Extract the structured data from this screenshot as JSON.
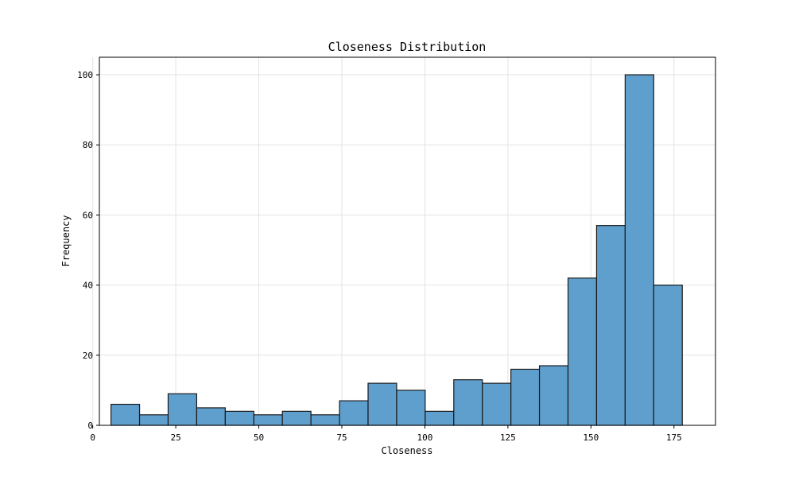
{
  "chart_data": {
    "type": "bar",
    "title": "Closeness Distribution",
    "xlabel": "Closeness",
    "ylabel": "Frequency",
    "xlim": [
      2,
      187.5
    ],
    "ylim": [
      0,
      105
    ],
    "x_ticks": [
      0,
      25,
      50,
      75,
      100,
      125,
      150,
      175
    ],
    "y_ticks": [
      0,
      20,
      40,
      60,
      80,
      100
    ],
    "grid": true,
    "bar_color": "#5f9fcd",
    "edge_color": "#1a1a1a",
    "bins": [
      {
        "x0": 5.5,
        "x1": 14.1,
        "count": 6
      },
      {
        "x0": 14.1,
        "x1": 22.7,
        "count": 3
      },
      {
        "x0": 22.7,
        "x1": 31.3,
        "count": 9
      },
      {
        "x0": 31.3,
        "x1": 39.9,
        "count": 5
      },
      {
        "x0": 39.9,
        "x1": 48.5,
        "count": 4
      },
      {
        "x0": 48.5,
        "x1": 57.1,
        "count": 3
      },
      {
        "x0": 57.1,
        "x1": 65.7,
        "count": 4
      },
      {
        "x0": 65.7,
        "x1": 74.3,
        "count": 3
      },
      {
        "x0": 74.3,
        "x1": 82.9,
        "count": 7
      },
      {
        "x0": 82.9,
        "x1": 91.5,
        "count": 12
      },
      {
        "x0": 91.5,
        "x1": 100.1,
        "count": 10
      },
      {
        "x0": 100.1,
        "x1": 108.7,
        "count": 4
      },
      {
        "x0": 108.7,
        "x1": 117.3,
        "count": 13
      },
      {
        "x0": 117.3,
        "x1": 125.9,
        "count": 12
      },
      {
        "x0": 125.9,
        "x1": 134.5,
        "count": 16
      },
      {
        "x0": 134.5,
        "x1": 143.1,
        "count": 17
      },
      {
        "x0": 143.1,
        "x1": 151.7,
        "count": 42
      },
      {
        "x0": 151.7,
        "x1": 160.3,
        "count": 57
      },
      {
        "x0": 160.3,
        "x1": 168.9,
        "count": 100
      },
      {
        "x0": 168.9,
        "x1": 177.5,
        "count": 40
      }
    ]
  }
}
